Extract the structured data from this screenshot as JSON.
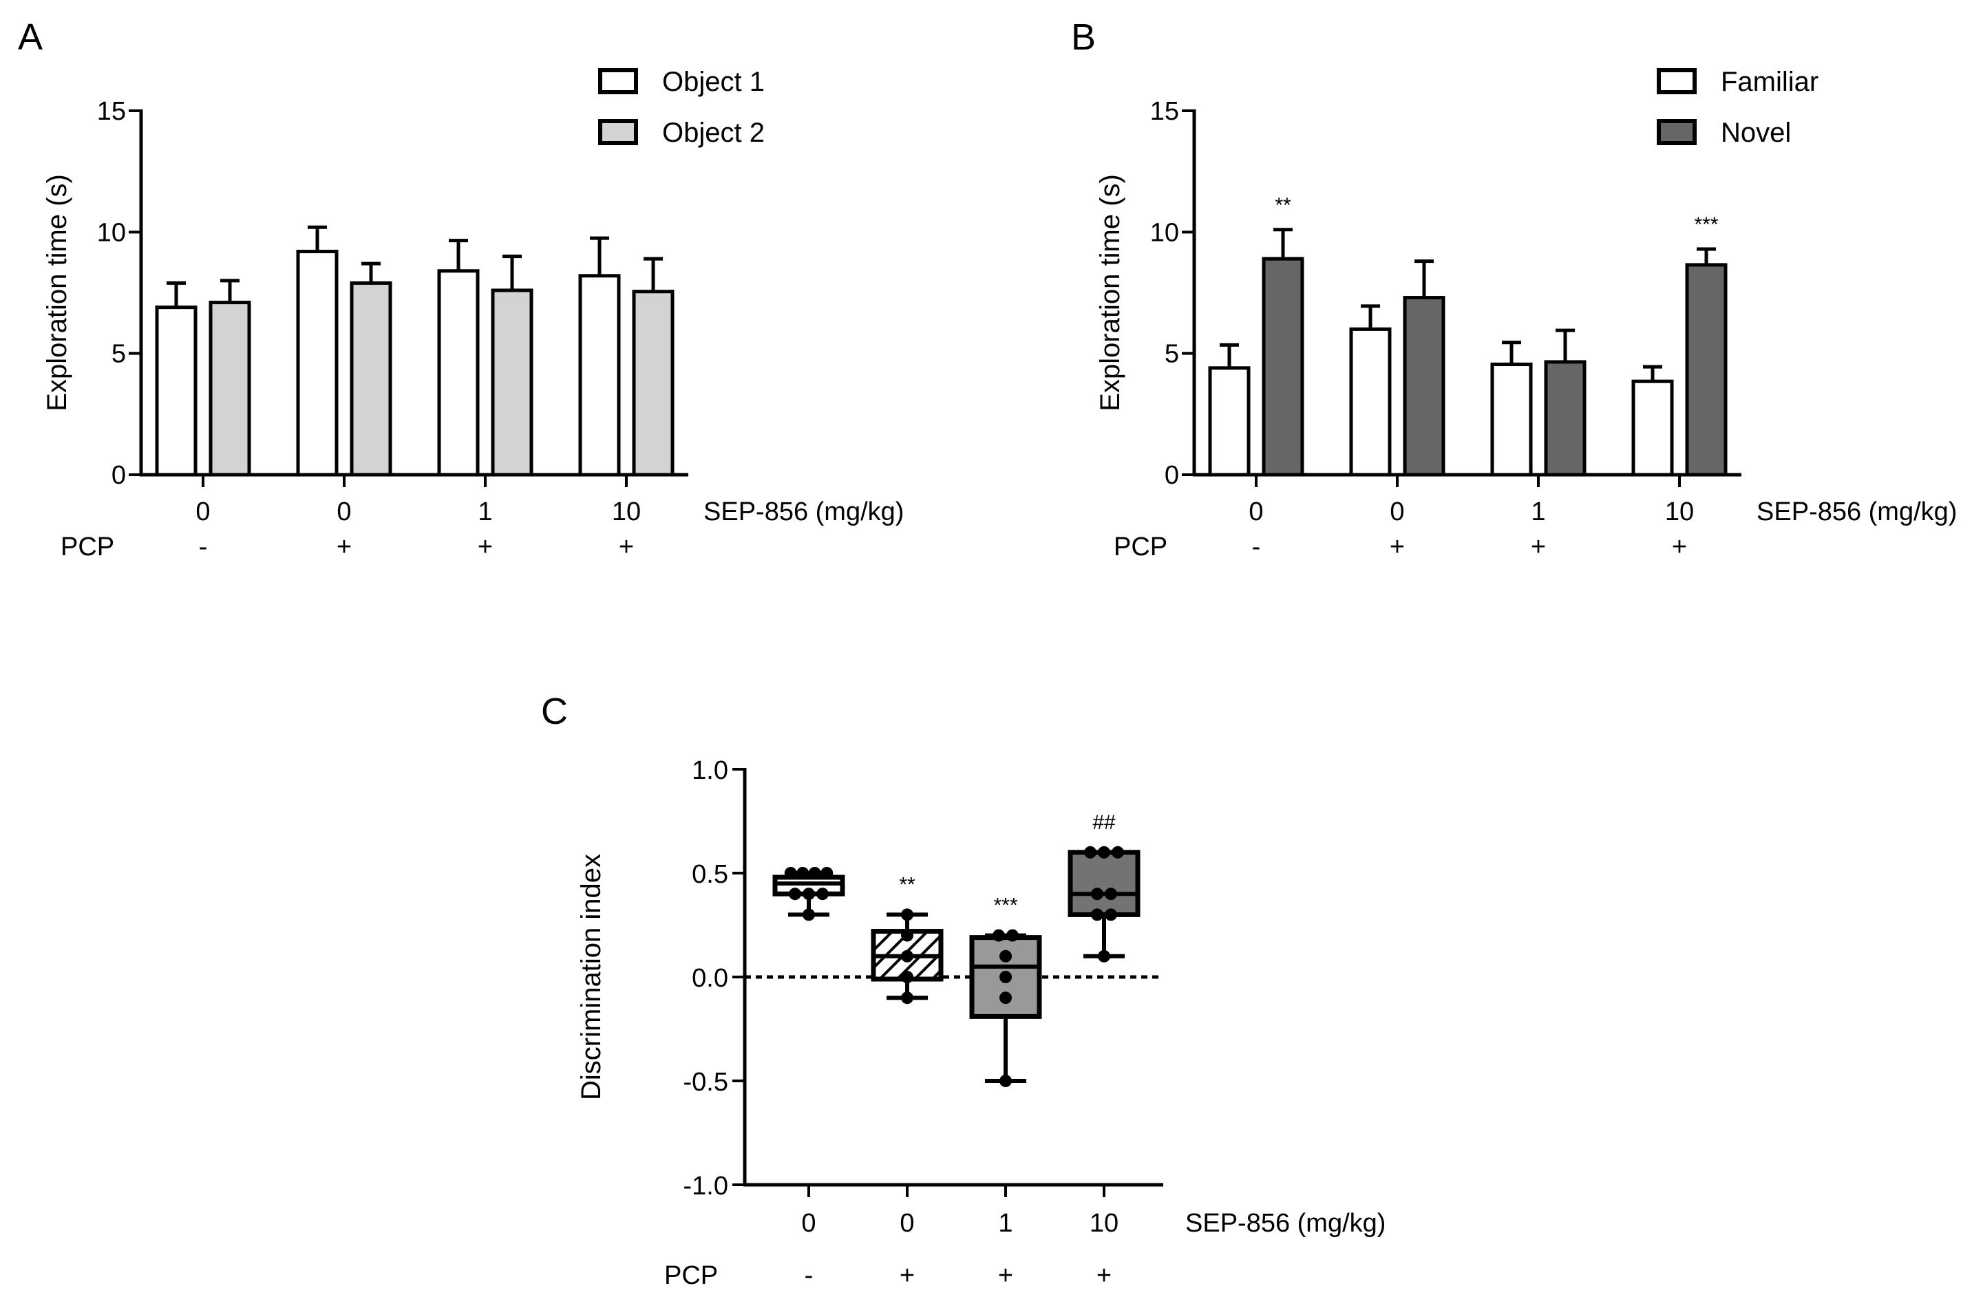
{
  "colors": {
    "axis": "#000000",
    "object1": "#ffffff",
    "object2": "#d3d3d3",
    "familiar": "#ffffff",
    "novel": "#666666",
    "box_group1": "#ffffff",
    "box_group3": "#999999",
    "box_group4": "#737373"
  },
  "chart_data": [
    {
      "panel": "A",
      "type": "bar",
      "ylabel": "Exploration time (s)",
      "ylim": [
        0,
        15
      ],
      "yticks": [
        0,
        5,
        10,
        15
      ],
      "ytick_labels": [
        "0",
        "5",
        "10",
        "15"
      ],
      "categories": [
        "0",
        "0",
        "1",
        "10"
      ],
      "category_axis_label": "SEP-856 (mg/kg)",
      "row_label": "PCP",
      "row_values": [
        "-",
        "+",
        "+",
        "+"
      ],
      "legend_position": "top-right",
      "series": [
        {
          "name": "Object 1",
          "values": [
            6.9,
            9.2,
            8.4,
            8.2
          ],
          "errors": [
            1.0,
            1.0,
            1.25,
            1.55
          ],
          "color": "#ffffff"
        },
        {
          "name": "Object 2",
          "values": [
            7.1,
            7.9,
            7.6,
            7.55
          ],
          "errors": [
            0.9,
            0.8,
            1.4,
            1.35
          ],
          "color": "#d3d3d3"
        }
      ],
      "significance": [
        "",
        "",
        "",
        ""
      ]
    },
    {
      "panel": "B",
      "type": "bar",
      "ylabel": "Exploration time (s)",
      "ylim": [
        0,
        15
      ],
      "yticks": [
        0,
        5,
        10,
        15
      ],
      "ytick_labels": [
        "0",
        "5",
        "10",
        "15"
      ],
      "categories": [
        "0",
        "0",
        "1",
        "10"
      ],
      "category_axis_label": "SEP-856 (mg/kg)",
      "row_label": "PCP",
      "row_values": [
        "-",
        "+",
        "+",
        "+"
      ],
      "legend_position": "top-right",
      "series": [
        {
          "name": "Familiar",
          "values": [
            4.4,
            6.0,
            4.55,
            3.85
          ],
          "errors": [
            0.95,
            0.95,
            0.9,
            0.6
          ],
          "color": "#ffffff"
        },
        {
          "name": "Novel",
          "values": [
            8.9,
            7.3,
            4.65,
            8.65
          ],
          "errors": [
            1.2,
            1.5,
            1.3,
            0.65
          ],
          "color": "#666666"
        }
      ],
      "significance": [
        "**",
        "",
        "",
        "***"
      ]
    },
    {
      "panel": "C",
      "type": "box",
      "ylabel": "Discrimination index",
      "ylim": [
        -1.0,
        1.0
      ],
      "yticks": [
        -1.0,
        -0.5,
        0.0,
        0.5,
        1.0
      ],
      "ytick_labels": [
        "-1.0",
        "-0.5",
        "0.0",
        "0.5",
        "1.0"
      ],
      "categories": [
        "0",
        "0",
        "1",
        "10"
      ],
      "category_axis_label": "SEP-856 (mg/kg)",
      "row_label": "PCP",
      "row_values": [
        "-",
        "+",
        "+",
        "+"
      ],
      "reference_line": 0.0,
      "boxes": [
        {
          "min": 0.3,
          "q1": 0.4,
          "median": 0.45,
          "q3": 0.48,
          "max": 0.5,
          "fill": "solid",
          "color": "#ffffff",
          "points": [
            0.5,
            0.5,
            0.5,
            0.5,
            0.4,
            0.4,
            0.4,
            0.3
          ],
          "significance": ""
        },
        {
          "min": -0.1,
          "q1": -0.01,
          "median": 0.1,
          "q3": 0.22,
          "max": 0.3,
          "fill": "hatch",
          "color": "#ffffff",
          "points": [
            0.3,
            0.2,
            0.1,
            0.0,
            -0.1
          ],
          "significance": "**"
        },
        {
          "min": -0.5,
          "q1": -0.19,
          "median": 0.05,
          "q3": 0.19,
          "max": 0.2,
          "fill": "solid",
          "color": "#999999",
          "points": [
            0.2,
            0.2,
            0.1,
            0.0,
            -0.1,
            -0.5
          ],
          "significance": "***"
        },
        {
          "min": 0.1,
          "q1": 0.3,
          "median": 0.4,
          "q3": 0.6,
          "max": 0.6,
          "fill": "solid",
          "color": "#737373",
          "points": [
            0.6,
            0.6,
            0.6,
            0.4,
            0.4,
            0.3,
            0.3,
            0.1
          ],
          "significance": "##"
        }
      ]
    }
  ],
  "panel_labels": {
    "a": "A",
    "b": "B",
    "c": "C"
  }
}
